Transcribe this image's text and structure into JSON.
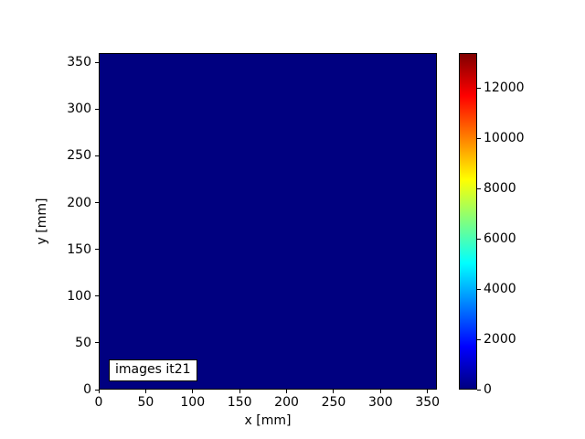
{
  "chart_data": {
    "type": "heatmap",
    "title": "",
    "xlabel": "x [mm]",
    "ylabel": "y [mm]",
    "x_range": [
      0,
      360
    ],
    "y_range": [
      0,
      360
    ],
    "x_ticks": [
      0,
      50,
      100,
      150,
      200,
      250,
      300,
      350
    ],
    "y_ticks": [
      0,
      50,
      100,
      150,
      200,
      250,
      300,
      350
    ],
    "annotation": "images it21",
    "colormap": "jet",
    "grid": false,
    "legend": false,
    "data_description": "uniform field, all values at colormap minimum",
    "uniform_value": 0,
    "value_color": "#000080",
    "colorbar": {
      "position": "right",
      "vmin": 0,
      "vmax": 13400,
      "ticks": [
        0,
        2000,
        4000,
        6000,
        8000,
        10000,
        12000
      ],
      "gradient_stops": [
        {
          "pos": 0.0,
          "color": "#000080"
        },
        {
          "pos": 0.125,
          "color": "#0000ff"
        },
        {
          "pos": 0.375,
          "color": "#00ffff"
        },
        {
          "pos": 0.625,
          "color": "#ffff00"
        },
        {
          "pos": 0.875,
          "color": "#ff0000"
        },
        {
          "pos": 1.0,
          "color": "#800000"
        }
      ]
    }
  }
}
